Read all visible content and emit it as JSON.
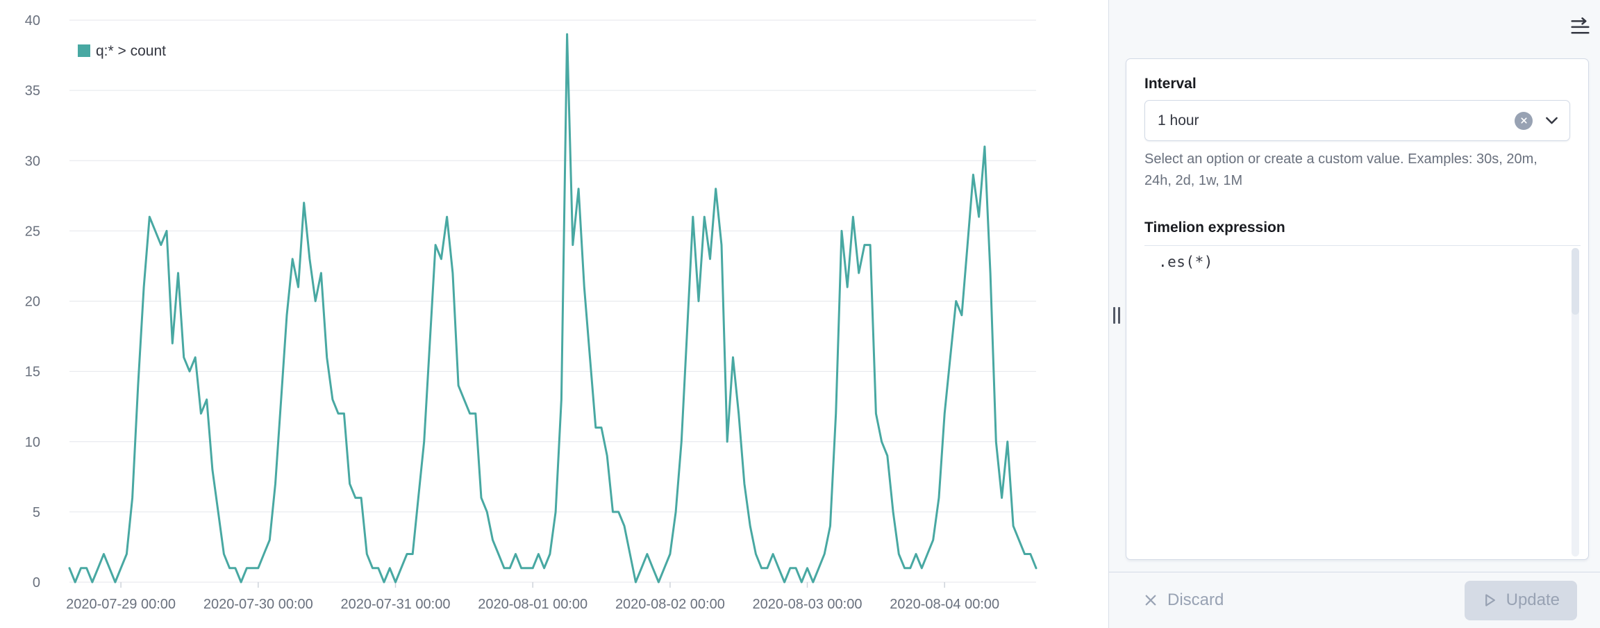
{
  "chart_data": {
    "type": "line",
    "title": "",
    "xlabel": "",
    "ylabel": "",
    "ylim": [
      0,
      40
    ],
    "y_ticks": [
      0,
      5,
      10,
      15,
      20,
      25,
      30,
      35,
      40
    ],
    "grid": true,
    "legend_position": "top-left",
    "x_start": "2020-07-28 15:00",
    "x_interval": "1 hour",
    "x_tick_labels": [
      "2020-07-29 00:00",
      "2020-07-30 00:00",
      "2020-07-31 00:00",
      "2020-08-01 00:00",
      "2020-08-02 00:00",
      "2020-08-03 00:00",
      "2020-08-04 00:00"
    ],
    "x_tick_indices": [
      9,
      33,
      57,
      81,
      105,
      129,
      153
    ],
    "series": [
      {
        "name": "q:* > count",
        "color": "#48A8A2",
        "values": [
          1,
          0,
          1,
          1,
          0,
          1,
          2,
          1,
          0,
          1,
          2,
          6,
          14,
          21,
          26,
          25,
          24,
          25,
          17,
          22,
          16,
          15,
          16,
          12,
          13,
          8,
          5,
          2,
          1,
          1,
          0,
          1,
          1,
          1,
          2,
          3,
          7,
          13,
          19,
          23,
          21,
          27,
          23,
          20,
          22,
          16,
          13,
          12,
          12,
          7,
          6,
          6,
          2,
          1,
          1,
          0,
          1,
          0,
          1,
          2,
          2,
          6,
          10,
          17,
          24,
          23,
          26,
          22,
          14,
          13,
          12,
          12,
          6,
          5,
          3,
          2,
          1,
          1,
          2,
          1,
          1,
          1,
          2,
          1,
          2,
          5,
          13,
          39,
          24,
          28,
          21,
          16,
          11,
          11,
          9,
          5,
          5,
          4,
          2,
          0,
          1,
          2,
          1,
          0,
          1,
          2,
          5,
          10,
          18,
          26,
          20,
          26,
          23,
          28,
          24,
          10,
          16,
          12,
          7,
          4,
          2,
          1,
          1,
          2,
          1,
          0,
          1,
          1,
          0,
          1,
          0,
          1,
          2,
          4,
          12,
          25,
          21,
          26,
          22,
          24,
          24,
          12,
          10,
          9,
          5,
          2,
          1,
          1,
          2,
          1,
          2,
          3,
          6,
          12,
          16,
          20,
          19,
          24,
          29,
          26,
          31,
          22,
          10,
          6,
          10,
          4,
          3,
          2,
          2,
          1
        ]
      }
    ]
  },
  "sidebar": {
    "collapse_icon": "menu-right-icon",
    "interval": {
      "label": "Interval",
      "value": "1 hour",
      "help": "Select an option or create a custom value. Examples: 30s, 20m, 24h, 2d, 1w, 1M"
    },
    "expression": {
      "label": "Timelion expression",
      "value": ".es(*)"
    },
    "footer": {
      "discard_label": "Discard",
      "update_label": "Update"
    }
  }
}
